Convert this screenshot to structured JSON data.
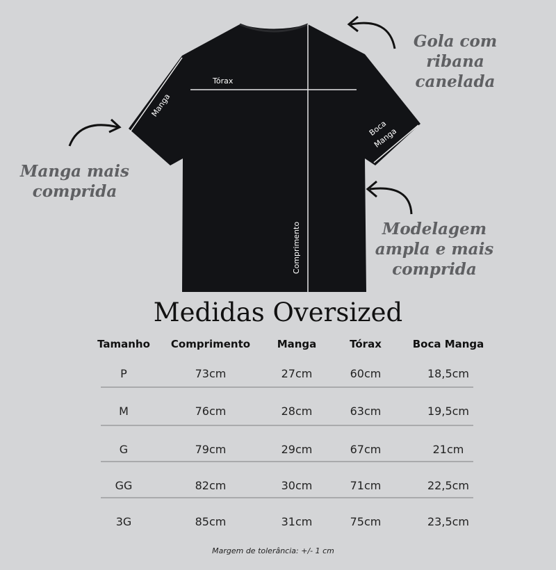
{
  "image_labels": {
    "torax": "Tórax",
    "manga": "Manga",
    "boca_manga_1": "Boca",
    "boca_manga_2": "Manga",
    "comprimento": "Comprimento"
  },
  "notes": {
    "gola": [
      "Gola com",
      "ribana",
      "canelada"
    ],
    "manga": [
      "Manga mais",
      "comprida"
    ],
    "modelagem": [
      "Modelagem",
      "ampla e mais",
      "comprida"
    ]
  },
  "title": "Medidas Oversized",
  "table": {
    "headers": [
      "Tamanho",
      "Comprimento",
      "Manga",
      "Tórax",
      "Boca Manga"
    ],
    "rows": [
      [
        "P",
        "73cm",
        "27cm",
        "60cm",
        "18,5cm"
      ],
      [
        "M",
        "76cm",
        "28cm",
        "63cm",
        "19,5cm"
      ],
      [
        "G",
        "79cm",
        "29cm",
        "67cm",
        "21cm"
      ],
      [
        "GG",
        "82cm",
        "30cm",
        "71cm",
        "22,5cm"
      ],
      [
        "3G",
        "85cm",
        "31cm",
        "75cm",
        "23,5cm"
      ]
    ]
  },
  "footer": "Margem de tolerância: +/- 1 cm",
  "colors": {
    "background": "#d4d5d7",
    "shirt": "#121316",
    "note_text": "#5f6063"
  }
}
